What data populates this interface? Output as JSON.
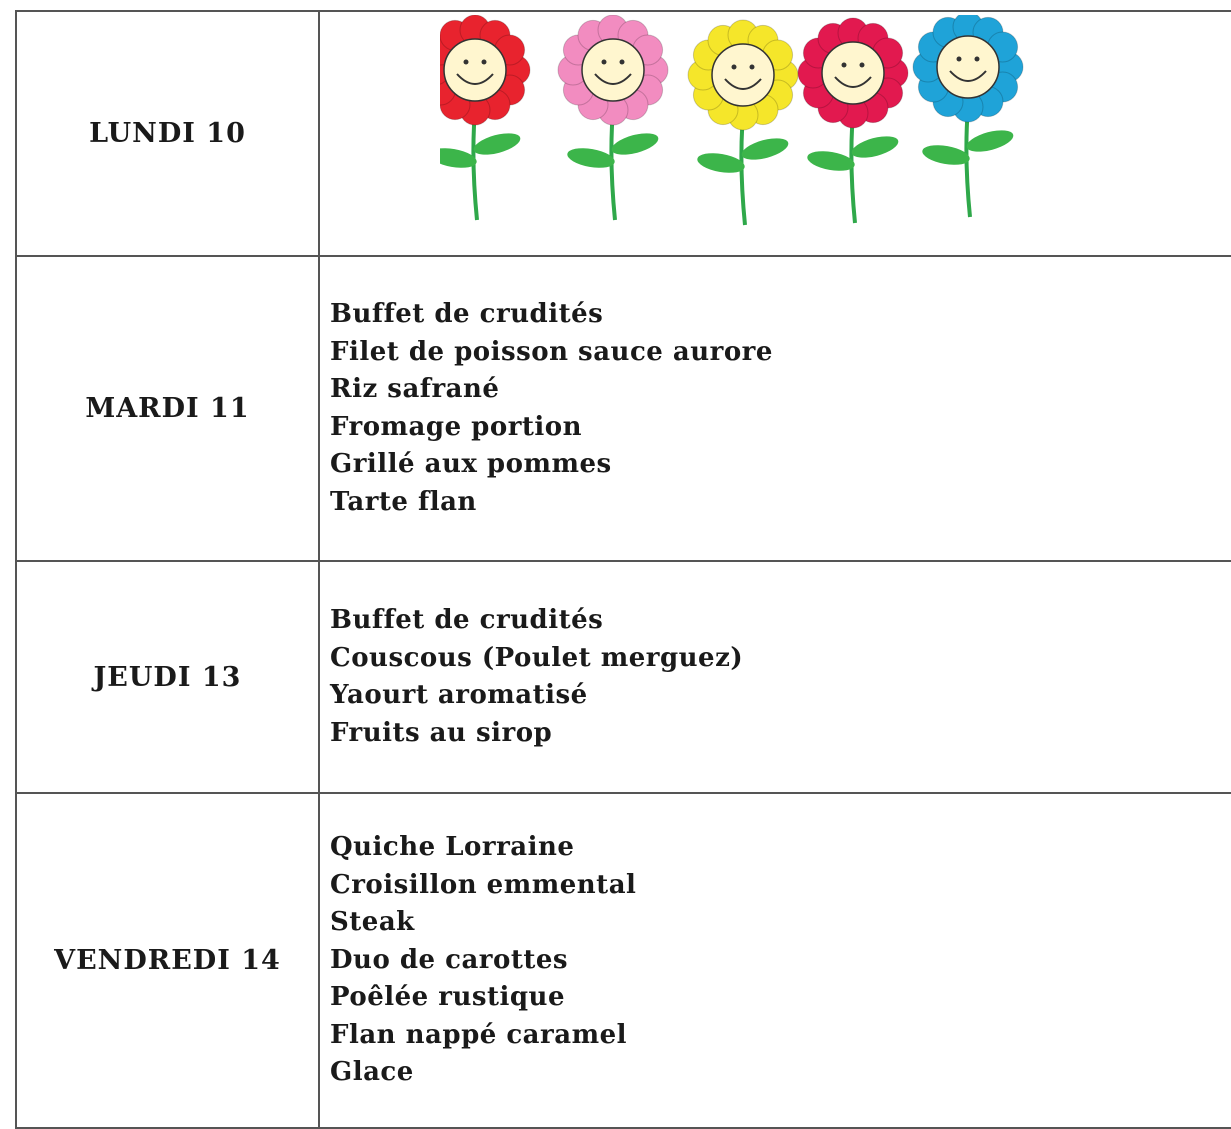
{
  "table": {
    "rows": [
      {
        "day": "LUNDI 10"
      },
      {
        "day": "MARDI 11",
        "items": [
          "Buffet de crudités",
          "Filet de poisson sauce aurore",
          "Riz safrané",
          "Fromage portion",
          "Grillé aux pommes",
          "Tarte flan"
        ]
      },
      {
        "day": "JEUDI 13",
        "items": [
          "Buffet de crudités",
          "Couscous (Poulet merguez)",
          "Yaourt aromatisé",
          "Fruits au sirop"
        ]
      },
      {
        "day": "VENDREDI 14",
        "items": [
          "Quiche Lorraine",
          "Croisillon emmental",
          "Steak",
          "Duo de carottes",
          "Poêlée rustique",
          "Flan nappé caramel",
          "Glace"
        ]
      }
    ]
  }
}
